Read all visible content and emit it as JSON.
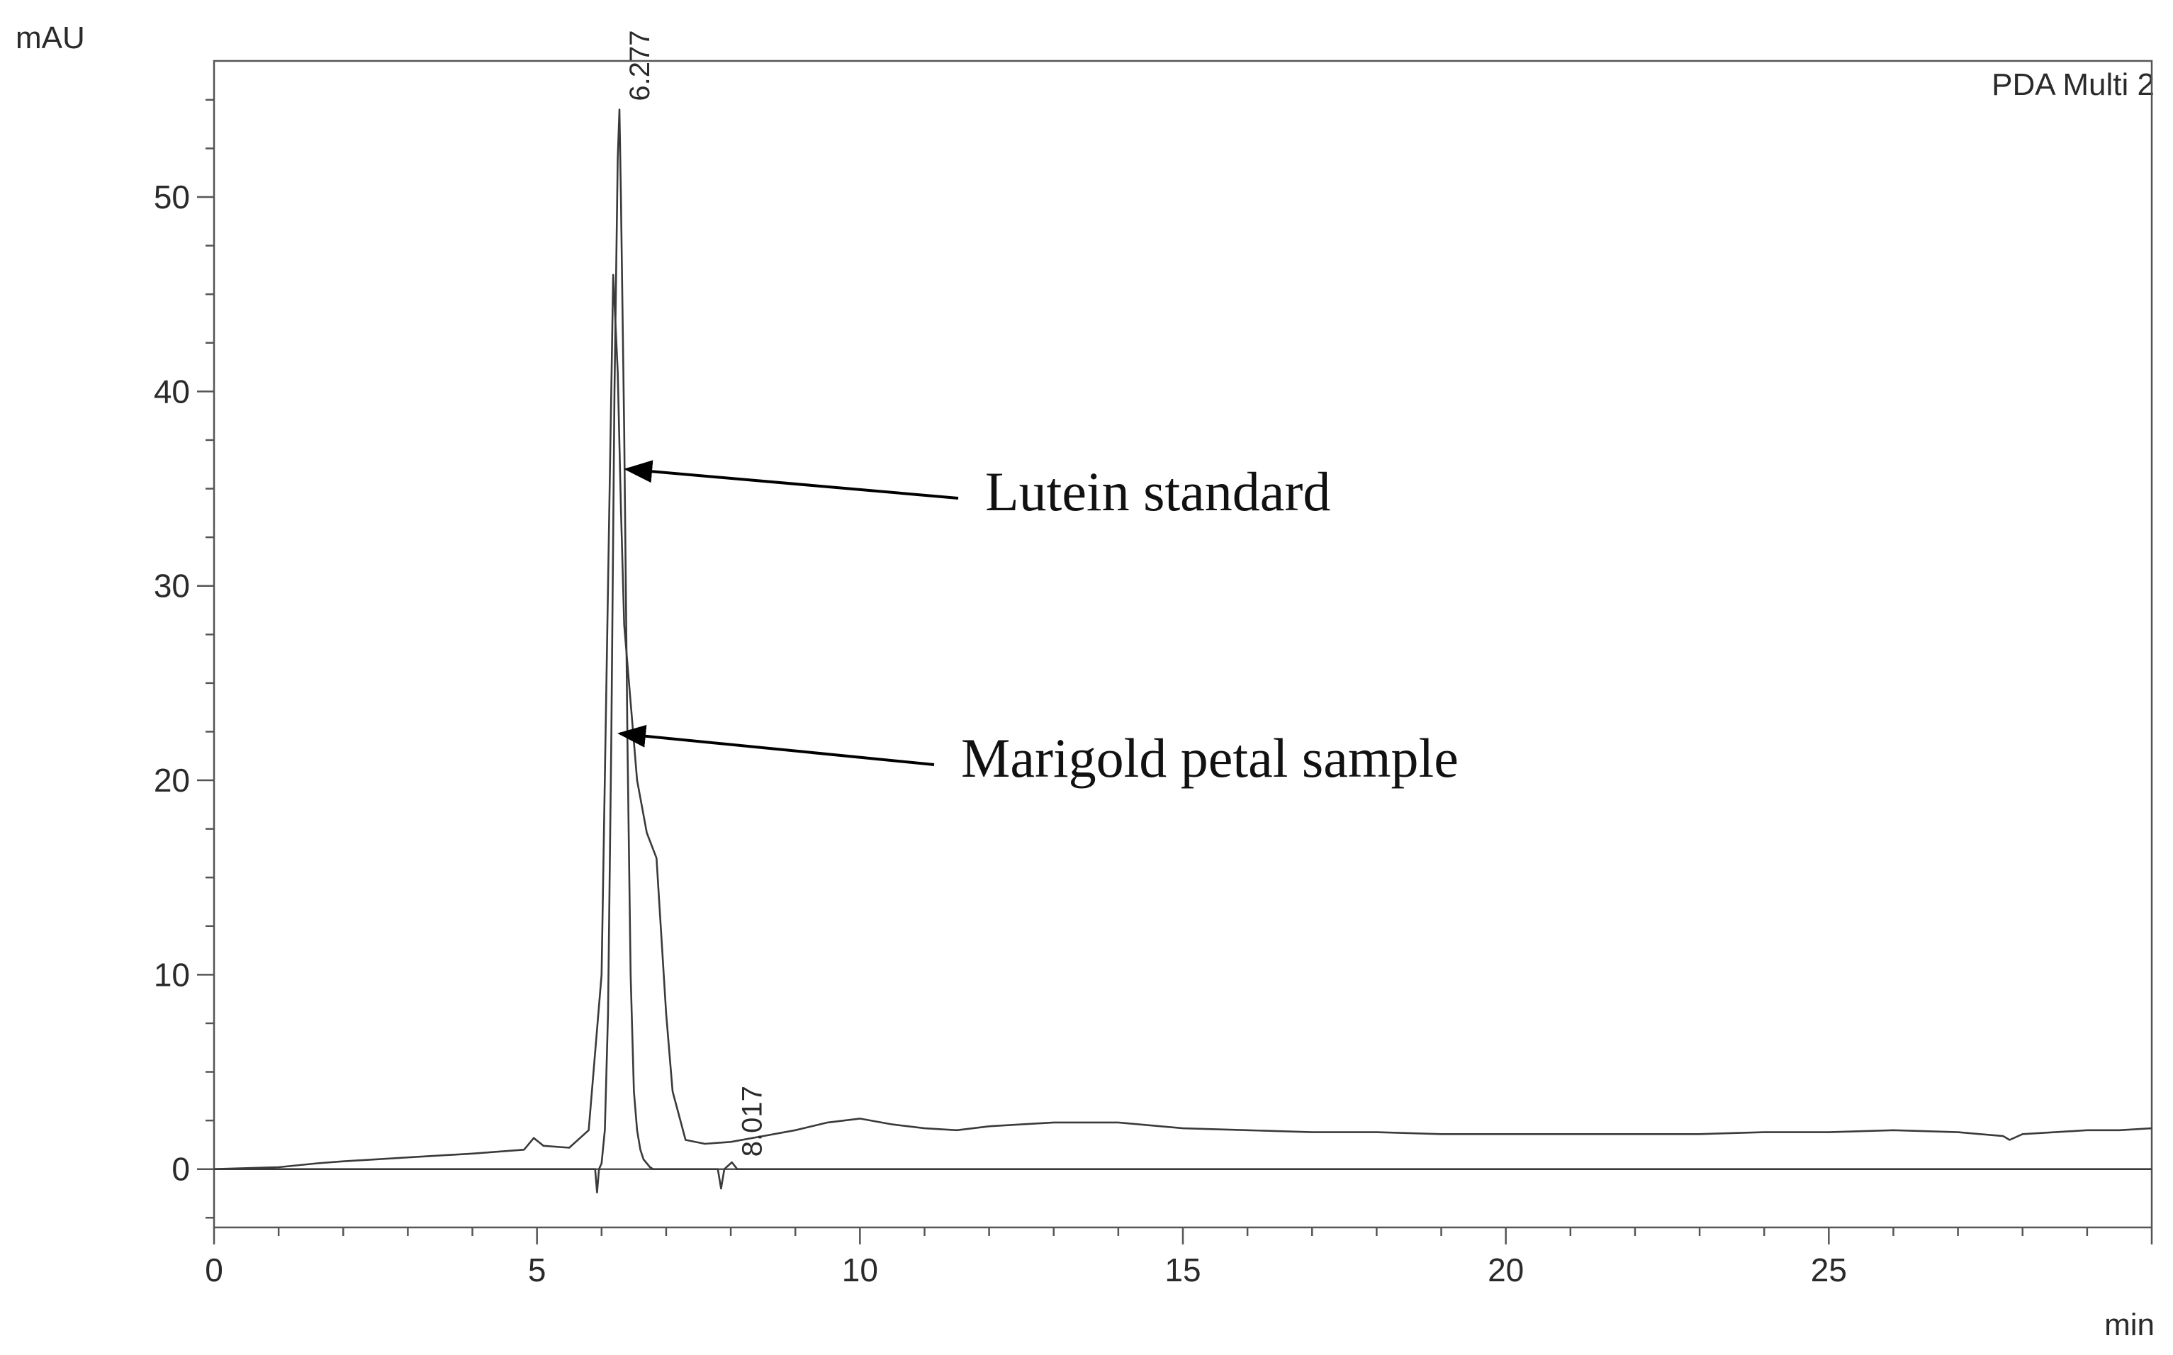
{
  "chart_data": {
    "type": "line",
    "ylabel": "mAU",
    "xlabel": "min",
    "detector_label": "PDA Multi 2",
    "xlim": [
      0,
      30
    ],
    "ylim": [
      -3,
      57
    ],
    "x_ticks": [
      0,
      5,
      10,
      15,
      20,
      25
    ],
    "y_ticks": [
      0,
      10,
      20,
      30,
      40,
      50
    ],
    "x_tick_labels": [
      "0",
      "5",
      "10",
      "15",
      "20",
      "25"
    ],
    "y_tick_labels": [
      "0",
      "10",
      "20",
      "30",
      "40",
      "50"
    ],
    "peak_labels": [
      {
        "text": "6.277",
        "x": 6.277,
        "y": 54.5
      },
      {
        "text": "8.017",
        "x": 8.017,
        "y": 0.2
      }
    ],
    "annotations": [
      {
        "text": "Lutein standard",
        "points_to": {
          "x": 6.3,
          "y": 36
        }
      },
      {
        "text": "Marigold petal sample",
        "points_to": {
          "x": 6.2,
          "y": 22.4
        }
      }
    ],
    "series": [
      {
        "x": [
          0,
          1,
          1.6,
          2,
          3,
          4,
          4.8,
          4.95,
          5.1,
          5.5,
          5.8,
          6.0,
          6.1,
          6.18,
          6.25,
          6.3,
          6.35,
          6.45,
          6.55,
          6.7,
          6.85,
          7.0,
          7.1,
          7.3,
          7.6,
          8.0,
          8.5,
          9.0,
          9.5,
          10,
          10.5,
          11,
          11.5,
          12,
          12.5,
          13,
          14,
          15,
          16,
          17,
          18,
          19,
          20,
          21,
          22,
          23,
          24,
          25,
          26,
          27,
          27.7,
          27.8,
          28,
          28.5,
          29,
          29.5,
          30
        ],
        "y": [
          0,
          0.1,
          0.3,
          0.4,
          0.6,
          0.8,
          1.0,
          1.6,
          1.2,
          1.1,
          2,
          10,
          30,
          46,
          41,
          34,
          28,
          24,
          20,
          17.3,
          16,
          8,
          4,
          1.5,
          1.3,
          1.4,
          1.7,
          2.0,
          2.4,
          2.6,
          2.3,
          2.1,
          2.0,
          2.2,
          2.3,
          2.4,
          2.4,
          2.1,
          2.0,
          1.9,
          1.9,
          1.8,
          1.8,
          1.8,
          1.8,
          1.8,
          1.9,
          1.9,
          2.0,
          1.9,
          1.7,
          1.5,
          1.8,
          1.9,
          2.0,
          2.0,
          2.1
        ]
      },
      {
        "x": [
          0,
          5.0,
          5.5,
          5.9,
          5.93,
          5.96,
          6.0,
          6.05,
          6.1,
          6.15,
          6.2,
          6.25,
          6.277,
          6.3,
          6.35,
          6.4,
          6.45,
          6.5,
          6.55,
          6.6,
          6.65,
          6.7,
          6.75,
          6.8,
          6.85,
          6.9,
          7.0,
          7.5,
          7.8,
          7.85,
          7.9,
          8.017,
          8.1,
          8.5,
          10,
          15,
          20,
          25,
          30
        ],
        "y": [
          0,
          0,
          0,
          0,
          -1.2,
          0,
          0.3,
          2,
          8,
          22,
          40,
          52,
          54.5,
          50,
          38,
          22,
          10,
          4,
          2,
          1,
          0.5,
          0.3,
          0.1,
          0,
          0,
          0,
          0,
          0,
          0,
          -1.0,
          0,
          0.35,
          0,
          0,
          0,
          0,
          0,
          0,
          0
        ]
      }
    ]
  }
}
